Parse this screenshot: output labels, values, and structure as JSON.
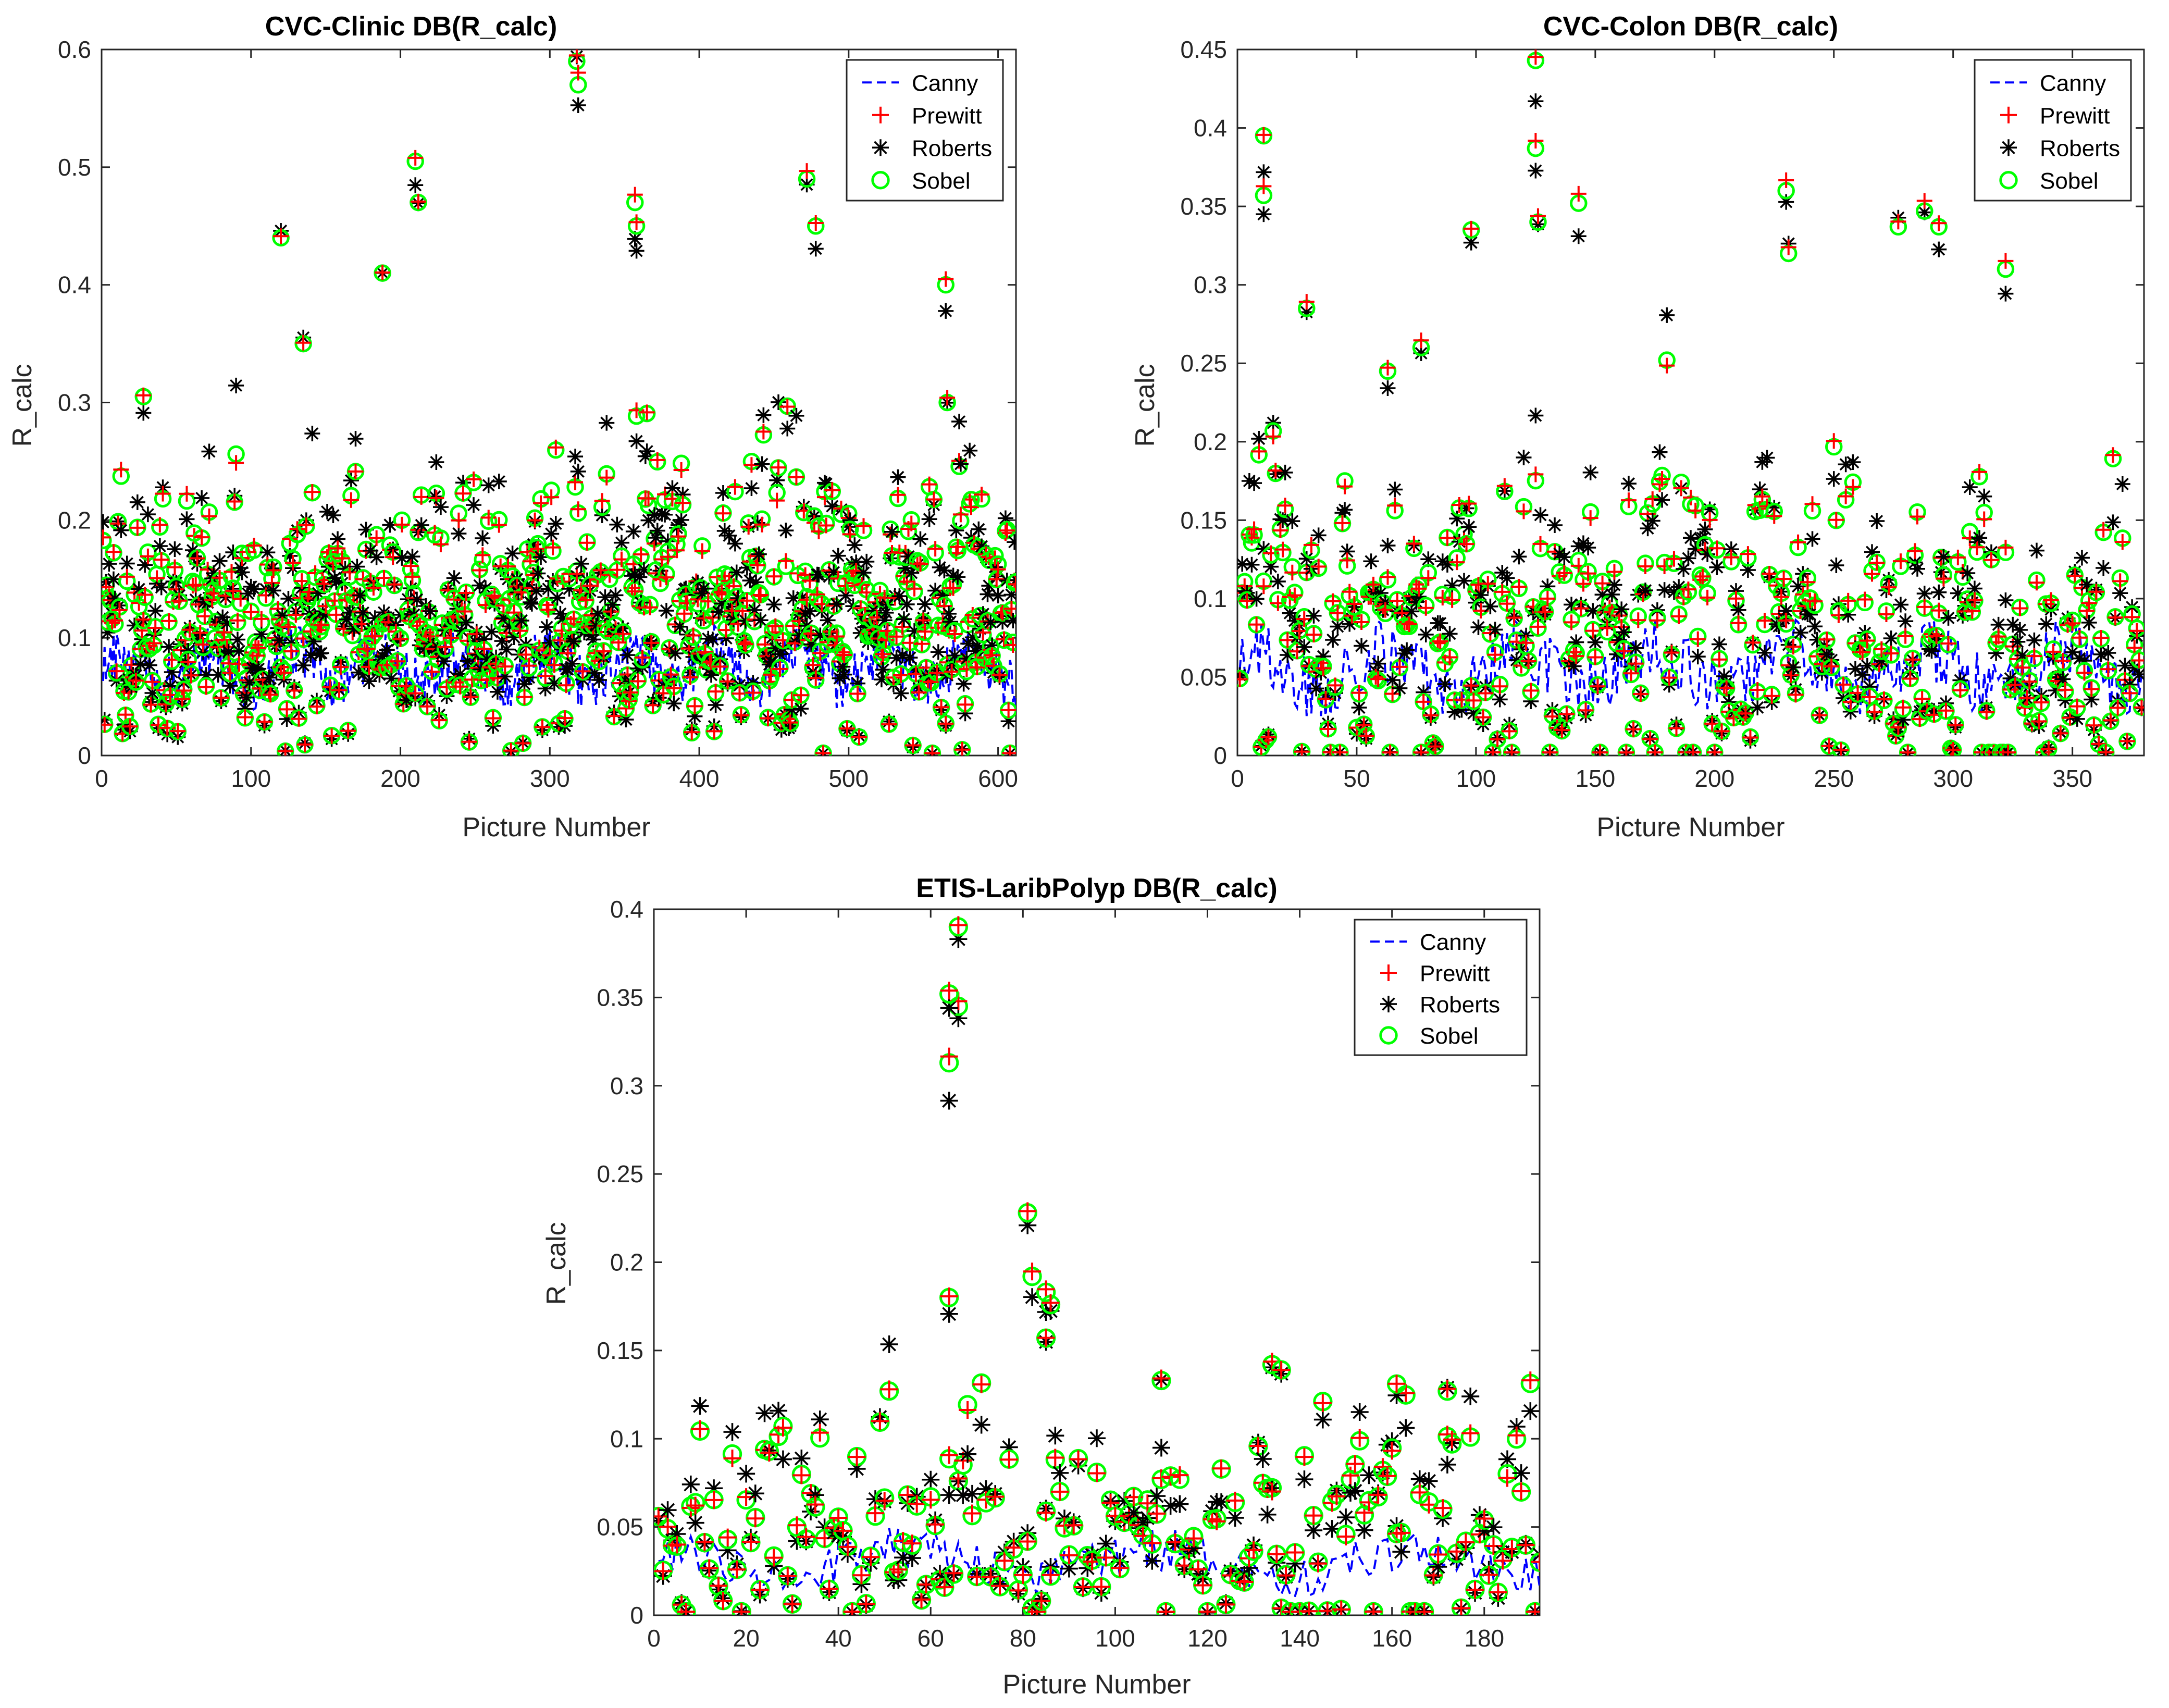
{
  "figure": {
    "background": "#ffffff"
  },
  "legend_styles": {
    "Canny": {
      "color": "#0000ff",
      "marker": "dashed-line"
    },
    "Prewitt": {
      "color": "#ff0000",
      "marker": "plus"
    },
    "Roberts": {
      "color": "#000000",
      "marker": "asterisk"
    },
    "Sobel": {
      "color": "#00ff00",
      "marker": "circle"
    }
  },
  "chart_data": [
    {
      "type": "scatter",
      "title": "CVC-Clinic DB(R_calc)",
      "xlabel": "Picture Number",
      "ylabel": "R_calc",
      "xlim": [
        0,
        612
      ],
      "ylim": [
        0,
        0.6
      ],
      "xticks": [
        0,
        100,
        200,
        300,
        400,
        500,
        600
      ],
      "xtick_labels": [
        "0",
        "100",
        "200",
        "300",
        "400",
        "500",
        "600"
      ],
      "yticks": [
        0,
        0.1,
        0.2,
        0.3,
        0.4,
        0.5,
        0.6
      ],
      "ytick_labels": [
        "0",
        "0.1",
        "0.2",
        "0.3",
        "0.4",
        "0.5",
        "0.6"
      ],
      "legend": [
        "Canny",
        "Prewitt",
        "Roberts",
        "Sobel"
      ],
      "legend_position": "top-right",
      "n_points": 612,
      "seed": 11,
      "canny_base": 0.075,
      "canny_spread": 0.045,
      "scatter_base": 0.11,
      "scatter_spread": 0.09,
      "peaks": [
        {
          "x": 28,
          "y": 0.305
        },
        {
          "x": 120,
          "y": 0.44
        },
        {
          "x": 135,
          "y": 0.35
        },
        {
          "x": 188,
          "y": 0.41
        },
        {
          "x": 210,
          "y": 0.505
        },
        {
          "x": 212,
          "y": 0.47
        },
        {
          "x": 318,
          "y": 0.59
        },
        {
          "x": 319,
          "y": 0.57
        },
        {
          "x": 357,
          "y": 0.47
        },
        {
          "x": 358,
          "y": 0.45
        },
        {
          "x": 472,
          "y": 0.49
        },
        {
          "x": 478,
          "y": 0.45
        },
        {
          "x": 565,
          "y": 0.4
        },
        {
          "x": 566,
          "y": 0.3
        }
      ]
    },
    {
      "type": "scatter",
      "title": "CVC-Colon DB(R_calc)",
      "xlabel": "Picture Number",
      "ylabel": "R_calc",
      "xlim": [
        0,
        380
      ],
      "ylim": [
        0,
        0.45
      ],
      "xticks": [
        0,
        50,
        100,
        150,
        200,
        250,
        300,
        350
      ],
      "xtick_labels": [
        "0",
        "50",
        "100",
        "150",
        "200",
        "250",
        "300",
        "350"
      ],
      "yticks": [
        0,
        0.05,
        0.1,
        0.15,
        0.2,
        0.25,
        0.3,
        0.35,
        0.4,
        0.45
      ],
      "ytick_labels": [
        "0",
        "0.05",
        "0.1",
        "0.15",
        "0.2",
        "0.25",
        "0.3",
        "0.35",
        "0.4",
        "0.45"
      ],
      "legend": [
        "Canny",
        "Prewitt",
        "Roberts",
        "Sobel"
      ],
      "legend_position": "top-right",
      "n_points": 379,
      "seed": 23,
      "canny_base": 0.055,
      "canny_spread": 0.04,
      "scatter_base": 0.07,
      "scatter_spread": 0.08,
      "peaks": [
        {
          "x": 11,
          "y": 0.395
        },
        {
          "x": 11,
          "y": 0.357
        },
        {
          "x": 29,
          "y": 0.285
        },
        {
          "x": 63,
          "y": 0.245
        },
        {
          "x": 77,
          "y": 0.26
        },
        {
          "x": 98,
          "y": 0.335
        },
        {
          "x": 125,
          "y": 0.443
        },
        {
          "x": 125,
          "y": 0.387
        },
        {
          "x": 126,
          "y": 0.34
        },
        {
          "x": 143,
          "y": 0.352
        },
        {
          "x": 230,
          "y": 0.36
        },
        {
          "x": 231,
          "y": 0.32
        },
        {
          "x": 277,
          "y": 0.337
        },
        {
          "x": 288,
          "y": 0.347
        },
        {
          "x": 294,
          "y": 0.337
        },
        {
          "x": 322,
          "y": 0.31
        }
      ]
    },
    {
      "type": "scatter",
      "title": "ETIS-LaribPolyp DB(R_calc)",
      "xlabel": "Picture Number",
      "ylabel": "R_calc",
      "xlim": [
        0,
        192
      ],
      "ylim": [
        0,
        0.4
      ],
      "xticks": [
        0,
        20,
        40,
        60,
        80,
        100,
        120,
        140,
        160,
        180
      ],
      "xtick_labels": [
        "0",
        "20",
        "40",
        "60",
        "80",
        "100",
        "120",
        "140",
        "160",
        "180"
      ],
      "yticks": [
        0,
        0.05,
        0.1,
        0.15,
        0.2,
        0.25,
        0.3,
        0.35,
        0.4
      ],
      "ytick_labels": [
        "0",
        "0.05",
        "0.1",
        "0.15",
        "0.2",
        "0.25",
        "0.3",
        "0.35",
        "0.4"
      ],
      "legend": [
        "Canny",
        "Prewitt",
        "Roberts",
        "Sobel"
      ],
      "legend_position": "top-right",
      "n_points": 192,
      "seed": 37,
      "canny_base": 0.03,
      "canny_spread": 0.025,
      "scatter_base": 0.045,
      "scatter_spread": 0.05,
      "peaks": [
        {
          "x": 64,
          "y": 0.313
        },
        {
          "x": 66,
          "y": 0.345
        },
        {
          "x": 66,
          "y": 0.39
        },
        {
          "x": 64,
          "y": 0.352
        },
        {
          "x": 64,
          "y": 0.18
        },
        {
          "x": 81,
          "y": 0.228
        },
        {
          "x": 82,
          "y": 0.192
        },
        {
          "x": 85,
          "y": 0.183
        },
        {
          "x": 86,
          "y": 0.176
        },
        {
          "x": 85,
          "y": 0.157
        },
        {
          "x": 134,
          "y": 0.142
        },
        {
          "x": 136,
          "y": 0.139
        },
        {
          "x": 110,
          "y": 0.133
        },
        {
          "x": 161,
          "y": 0.131
        },
        {
          "x": 172,
          "y": 0.127
        }
      ]
    }
  ]
}
